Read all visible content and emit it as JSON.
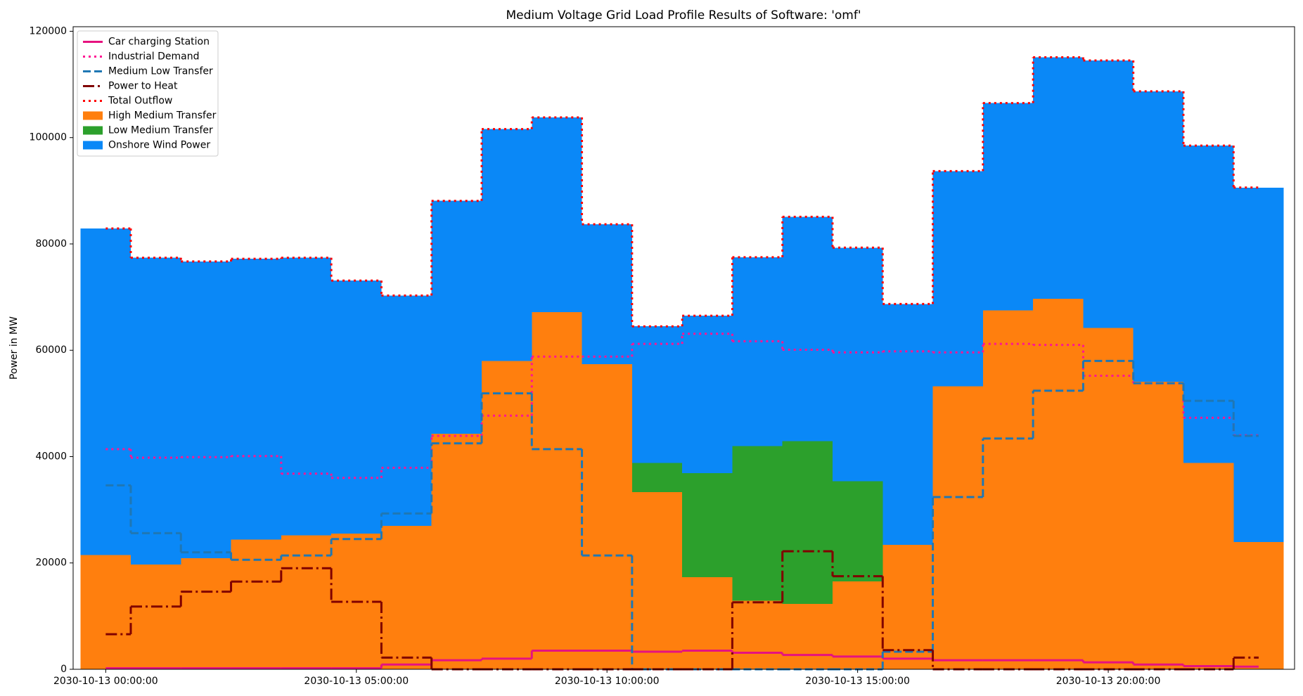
{
  "chart_data": {
    "type": "step-area",
    "title": "Medium Voltage Grid Load Profile Results of Software: 'omf'",
    "y_label": "Power in MW",
    "x": [
      "2030-10-13 00:00:00",
      "2030-10-13 01:00:00",
      "2030-10-13 02:00:00",
      "2030-10-13 03:00:00",
      "2030-10-13 04:00:00",
      "2030-10-13 05:00:00",
      "2030-10-13 06:00:00",
      "2030-10-13 07:00:00",
      "2030-10-13 08:00:00",
      "2030-10-13 09:00:00",
      "2030-10-13 10:00:00",
      "2030-10-13 11:00:00",
      "2030-10-13 12:00:00",
      "2030-10-13 13:00:00",
      "2030-10-13 14:00:00",
      "2030-10-13 15:00:00",
      "2030-10-13 16:00:00",
      "2030-10-13 17:00:00",
      "2030-10-13 18:00:00",
      "2030-10-13 19:00:00",
      "2030-10-13 20:00:00",
      "2030-10-13 21:00:00",
      "2030-10-13 22:00:00",
      "2030-10-13 23:00:00"
    ],
    "xlim": [
      "2030-10-12 23:21:00",
      "2030-10-13 23:43:00"
    ],
    "xticks": [
      "2030-10-13 00:00:00",
      "2030-10-13 05:00:00",
      "2030-10-13 10:00:00",
      "2030-10-13 15:00:00",
      "2030-10-13 20:00:00"
    ],
    "ylim": [
      0,
      120855
    ],
    "yticks": [
      0,
      20000,
      40000,
      60000,
      80000,
      100000,
      120000
    ],
    "legend": "upper left",
    "series": [
      {
        "name": "Car charging Station",
        "kind": "line",
        "style": "solid",
        "color": "#e6127f",
        "values": [
          200,
          200,
          200,
          200,
          200,
          200,
          900,
          1700,
          2000,
          3500,
          3500,
          3300,
          3500,
          3100,
          2700,
          2400,
          2000,
          1700,
          1700,
          1700,
          1300,
          900,
          600,
          500
        ]
      },
      {
        "name": "Industrial Demand",
        "kind": "line",
        "style": "dotted",
        "color": "#ff1493",
        "values": [
          41400,
          39800,
          39900,
          40100,
          36800,
          36000,
          37900,
          43900,
          47700,
          58800,
          58800,
          61200,
          63100,
          61700,
          60100,
          59600,
          59800,
          59600,
          61200,
          61000,
          55200,
          53800,
          47300,
          44000
        ]
      },
      {
        "name": "Medium Low Transfer",
        "kind": "line",
        "style": "dashed",
        "color": "#1f77b4",
        "values": [
          34600,
          25600,
          22000,
          20600,
          21400,
          24500,
          29300,
          42500,
          51900,
          41400,
          21400,
          0,
          0,
          0,
          0,
          0,
          3300,
          32400,
          43400,
          52400,
          58000,
          53800,
          50500,
          43900
        ]
      },
      {
        "name": "Power to Heat",
        "kind": "line",
        "style": "dashdot",
        "color": "#800000",
        "values": [
          6600,
          11800,
          14600,
          16500,
          19000,
          12700,
          2200,
          0,
          0,
          0,
          0,
          0,
          0,
          12600,
          22200,
          17500,
          3600,
          0,
          0,
          0,
          0,
          0,
          0,
          2200
        ]
      },
      {
        "name": "Total Outflow",
        "kind": "line",
        "style": "dotted",
        "color": "#ff0000",
        "values": [
          82900,
          77400,
          76700,
          77200,
          77400,
          73100,
          70300,
          88100,
          101600,
          103800,
          83700,
          64500,
          66500,
          77500,
          85100,
          79300,
          68700,
          93700,
          106500,
          115100,
          114500,
          108700,
          98500,
          90600
        ]
      },
      {
        "name": "High Medium Transfer",
        "kind": "area",
        "color": "#ff7f0e",
        "values": [
          21500,
          19700,
          20900,
          24400,
          25200,
          25500,
          27000,
          44300,
          58000,
          67200,
          57400,
          33300,
          17300,
          12900,
          12300,
          16500,
          23400,
          53200,
          67500,
          69700,
          64200,
          54100,
          38800,
          23900
        ]
      },
      {
        "name": "Low Medium Transfer",
        "kind": "area",
        "color": "#2ca02c",
        "values": [
          0,
          0,
          0,
          0,
          0,
          0,
          0,
          0,
          0,
          0,
          0,
          5500,
          19600,
          29100,
          30600,
          18900,
          0,
          0,
          0,
          0,
          0,
          0,
          0,
          0
        ]
      },
      {
        "name": "Onshore Wind Power",
        "kind": "area",
        "color": "#0a88f7",
        "values": [
          61400,
          57700,
          55800,
          52800,
          52200,
          47600,
          43300,
          43800,
          43600,
          36600,
          26300,
          25700,
          29600,
          35500,
          42200,
          43900,
          45300,
          40500,
          39000,
          45400,
          50300,
          54600,
          59700,
          66700
        ]
      }
    ]
  }
}
